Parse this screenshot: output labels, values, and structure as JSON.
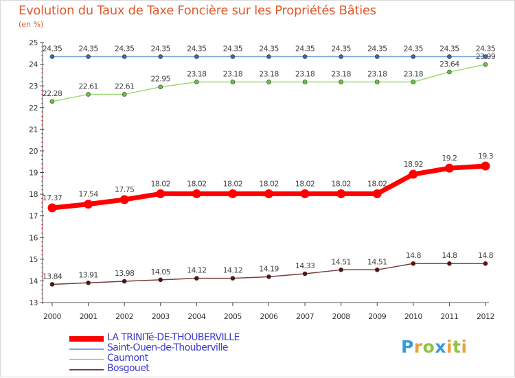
{
  "title": "Evolution du Taux de Taxe Foncière sur les Propriétés Bâties",
  "subtitle": "(en %)",
  "logo": {
    "letters": [
      "P",
      "r",
      "o",
      "x",
      "i",
      "t",
      "i"
    ],
    "colors": [
      "#3a9ad9",
      "#e8a13a",
      "#8fc23f",
      "#3a9ad9",
      "#e8a13a",
      "#8fc23f",
      "#e8a13a"
    ]
  },
  "chart_data": {
    "type": "line",
    "title": "Evolution du Taux de Taxe Foncière sur les Propriétés Bâties",
    "ylabel": "(en %)",
    "x": [
      "2000",
      "2001",
      "2002",
      "2003",
      "2004",
      "2005",
      "2006",
      "2007",
      "2008",
      "2009",
      "2010",
      "2011",
      "2012"
    ],
    "ylim": [
      13,
      25
    ],
    "yticks": [
      "13",
      "14",
      "15",
      "16",
      "17",
      "18",
      "19",
      "20",
      "21",
      "22",
      "23",
      "24",
      "25"
    ],
    "series": [
      {
        "name": "LA TRINITé-DE-THOUBERVILLE",
        "color": "#ff0000",
        "marker_color": "#ff0000",
        "emphasis": "thick",
        "values": [
          17.37,
          17.54,
          17.75,
          18.02,
          18.02,
          18.02,
          18.02,
          18.02,
          18.02,
          18.02,
          18.92,
          19.2,
          19.3
        ],
        "labels": [
          "17.37",
          "17.54",
          "17.75",
          "18.02",
          "18.02",
          "18.02",
          "18.02",
          "18.02",
          "18.02",
          "18.02",
          "18.92",
          "19.2",
          "19.3"
        ]
      },
      {
        "name": "Saint-Ouen-de-Thouberville",
        "color": "#7aa5d6",
        "marker_color": "#2f6fb0",
        "emphasis": "thin",
        "values": [
          24.35,
          24.35,
          24.35,
          24.35,
          24.35,
          24.35,
          24.35,
          24.35,
          24.35,
          24.35,
          24.35,
          24.35,
          24.35
        ],
        "labels": [
          "24.35",
          "24.35",
          "24.35",
          "24.35",
          "24.35",
          "24.35",
          "24.35",
          "24.35",
          "24.35",
          "24.35",
          "24.35",
          "24.35",
          "24.35"
        ]
      },
      {
        "name": "Caumont",
        "color": "#9ddc72",
        "marker_color": "#6ac23a",
        "emphasis": "thin",
        "values": [
          22.28,
          22.61,
          22.61,
          22.95,
          23.18,
          23.18,
          23.18,
          23.18,
          23.18,
          23.18,
          23.18,
          23.64,
          23.99
        ],
        "labels": [
          "22.28",
          "22.61",
          "22.61",
          "22.95",
          "23.18",
          "23.18",
          "23.18",
          "23.18",
          "23.18",
          "23.18",
          "23.18",
          "23.64",
          "23.99"
        ]
      },
      {
        "name": "Bosgouet",
        "color": "#7a3b3b",
        "marker_color": "#5a1010",
        "emphasis": "thin",
        "values": [
          13.84,
          13.91,
          13.98,
          14.05,
          14.12,
          14.12,
          14.19,
          14.33,
          14.51,
          14.51,
          14.8,
          14.8,
          14.8
        ],
        "labels": [
          "13.84",
          "13.91",
          "13.98",
          "14.05",
          "14.12",
          "14.12",
          "14.19",
          "14.33",
          "14.51",
          "14.51",
          "14.8",
          "14.8",
          "14.8"
        ]
      }
    ],
    "legend_position": "bottom-left",
    "grid": false
  }
}
